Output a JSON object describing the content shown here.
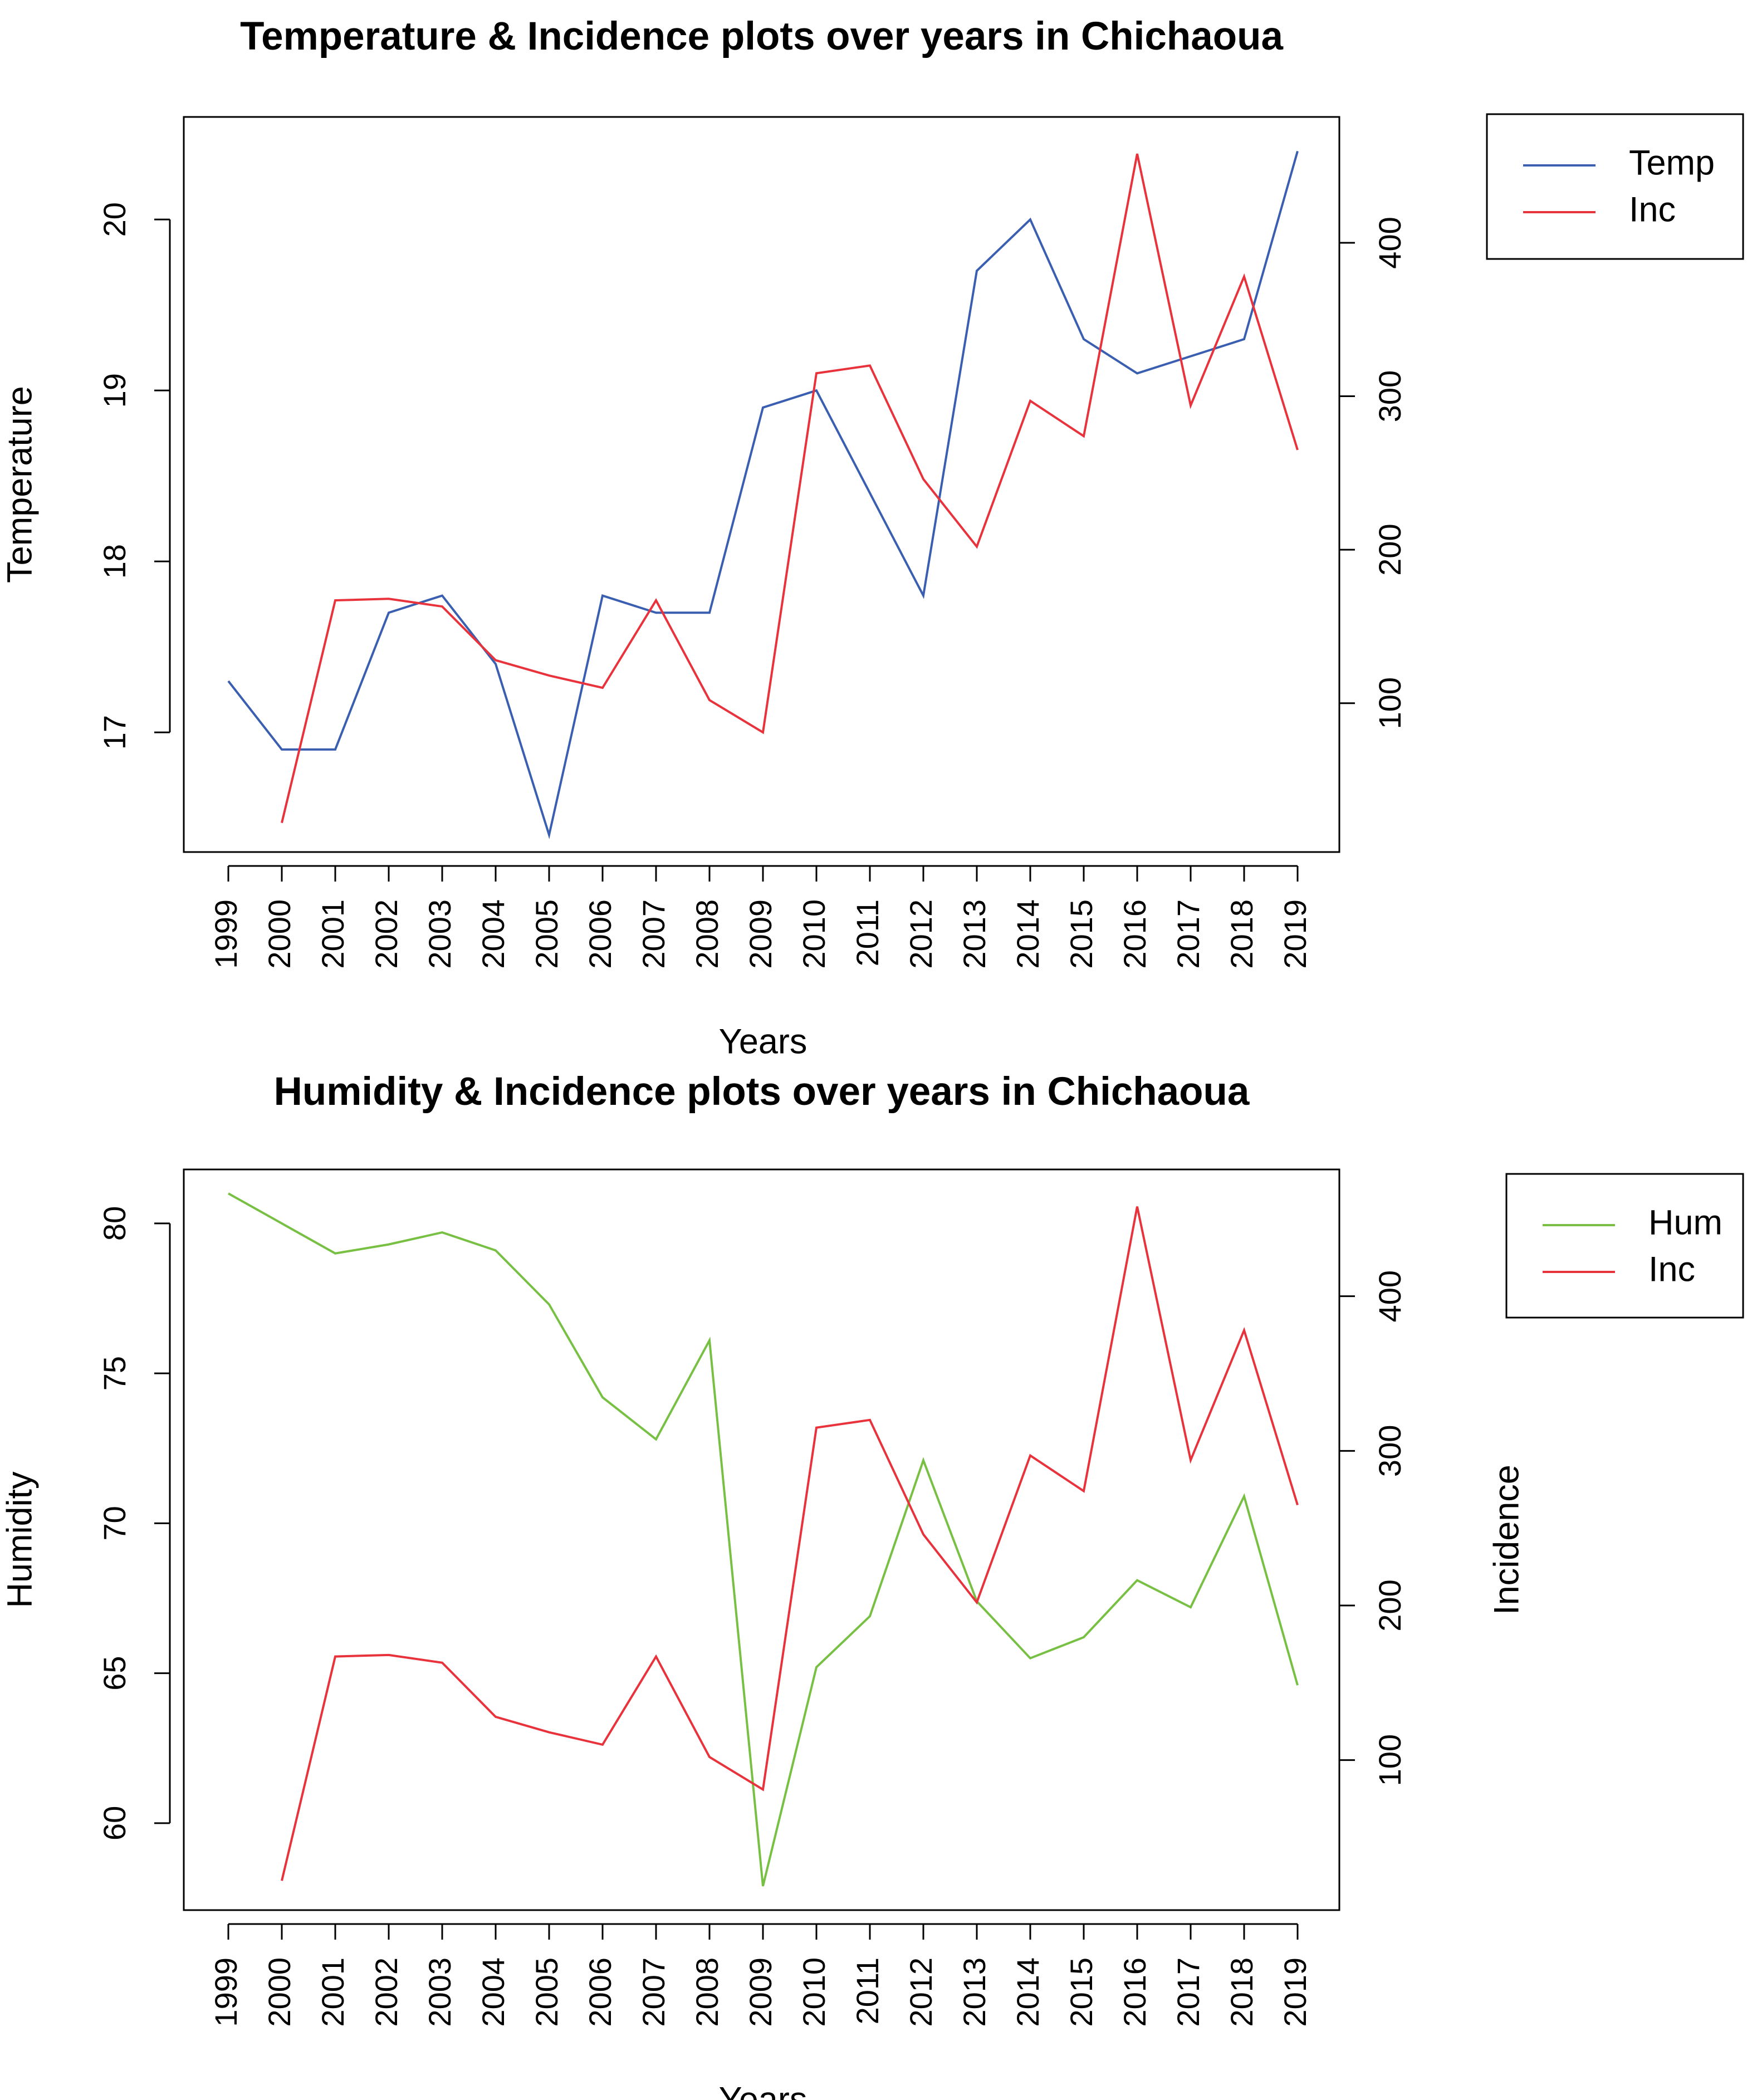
{
  "chart_data": [
    {
      "type": "line",
      "title": "Temperature & Incidence plots over years in Chichaoua",
      "xlabel": "Years",
      "ylabel": "Temperature",
      "y2label": "",
      "categories": [
        "1999",
        "2000",
        "2001",
        "2002",
        "2003",
        "2004",
        "2005",
        "2006",
        "2007",
        "2008",
        "2009",
        "2010",
        "2011",
        "2012",
        "2013",
        "2014",
        "2015",
        "2016",
        "2017",
        "2018",
        "2019"
      ],
      "ylim": [
        16.3,
        20.6
      ],
      "y2lim": [
        3,
        482
      ],
      "yticks": [
        17,
        18,
        19,
        20
      ],
      "y2ticks": [
        100,
        200,
        300,
        400
      ],
      "legend_position": "top-right",
      "grid": false,
      "series": [
        {
          "name": "Temp",
          "axis": "left",
          "color": "#3a5fb0",
          "values": [
            17.3,
            16.9,
            16.9,
            17.7,
            17.8,
            17.4,
            16.4,
            17.8,
            17.7,
            17.7,
            18.9,
            19.0,
            18.4,
            17.8,
            19.7,
            20.0,
            19.3,
            19.1,
            19.2,
            19.3,
            20.4
          ]
        },
        {
          "name": "Inc",
          "axis": "right",
          "color": "#e8333c",
          "values": [
            null,
            22,
            167,
            168,
            163,
            128,
            118,
            110,
            167,
            102,
            81,
            315,
            320,
            246,
            202,
            297,
            274,
            458,
            294,
            378,
            265
          ]
        }
      ]
    },
    {
      "type": "line",
      "title": "Humidity & Incidence plots over years in Chichaoua",
      "xlabel": "Years",
      "ylabel": "Humidity",
      "y2label": "Incidence",
      "categories": [
        "1999",
        "2000",
        "2001",
        "2002",
        "2003",
        "2004",
        "2005",
        "2006",
        "2007",
        "2008",
        "2009",
        "2010",
        "2011",
        "2012",
        "2013",
        "2014",
        "2015",
        "2016",
        "2017",
        "2018",
        "2019"
      ],
      "ylim": [
        57.1,
        81.8
      ],
      "y2lim": [
        3,
        482
      ],
      "yticks": [
        60,
        65,
        70,
        75,
        80
      ],
      "y2ticks": [
        100,
        200,
        300,
        400
      ],
      "legend_position": "top-right",
      "grid": false,
      "series": [
        {
          "name": "Hum",
          "axis": "left",
          "color": "#77c043",
          "values": [
            81.0,
            80.0,
            79.0,
            79.3,
            79.7,
            79.1,
            77.3,
            74.2,
            72.8,
            76.1,
            57.9,
            65.2,
            66.9,
            72.1,
            67.4,
            65.5,
            66.2,
            68.1,
            67.2,
            70.9,
            64.6
          ]
        },
        {
          "name": "Inc",
          "axis": "right",
          "color": "#e8333c",
          "values": [
            null,
            22,
            167,
            168,
            163,
            128,
            118,
            110,
            167,
            102,
            81,
            315,
            320,
            246,
            202,
            297,
            274,
            458,
            294,
            378,
            265
          ]
        }
      ]
    }
  ]
}
